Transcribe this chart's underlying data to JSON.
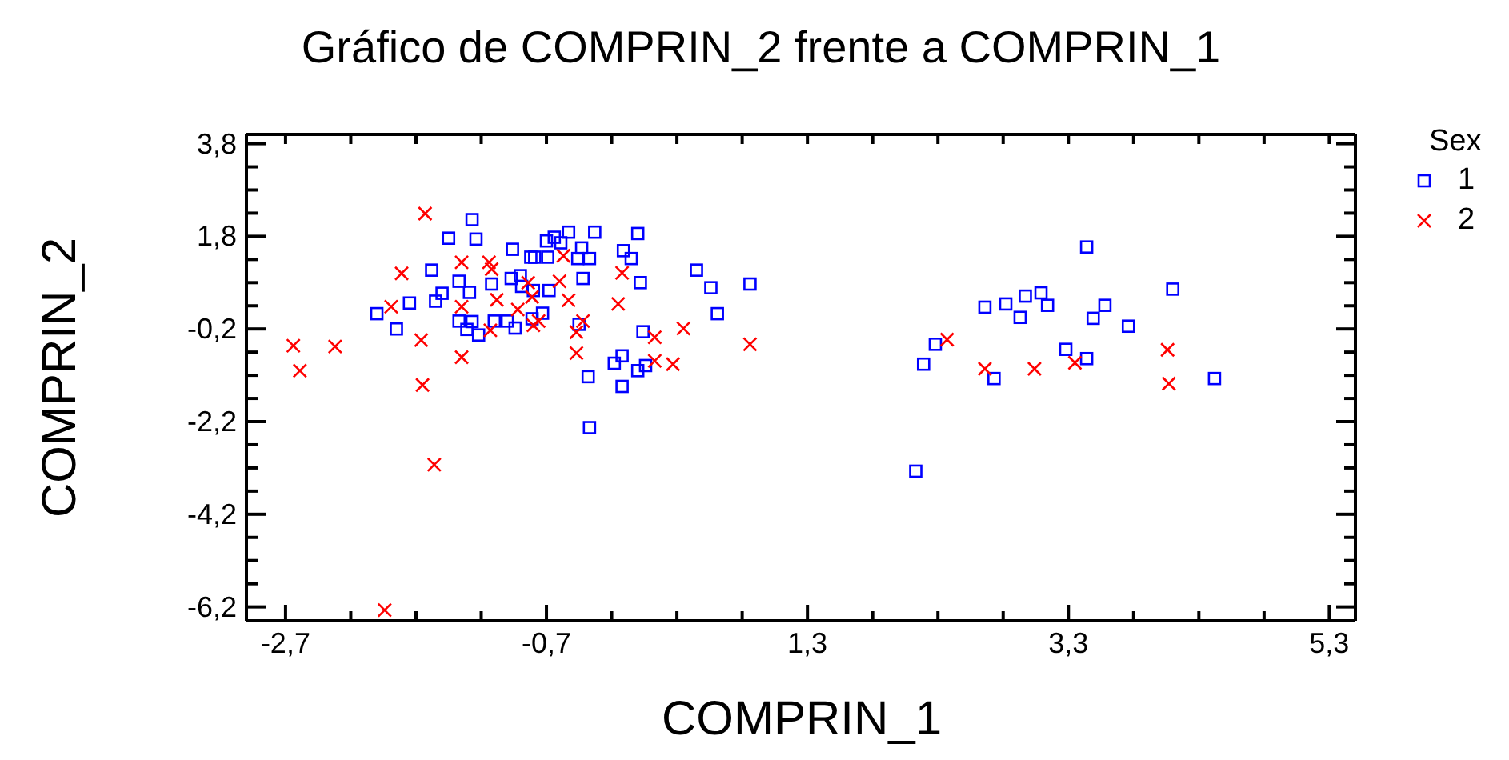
{
  "chart_data": {
    "type": "scatter",
    "title": "Gráfico de COMPRIN_2 frente a COMPRIN_1",
    "xlabel": "COMPRIN_1",
    "ylabel": "COMPRIN_2",
    "legend_title": "Sex",
    "legend": "top right",
    "grid": false,
    "xlim": [
      -3.0,
      5.5
    ],
    "ylim": [
      -6.5,
      4.0
    ],
    "xticks": [
      {
        "value": -2.7,
        "label": "-2,7"
      },
      {
        "value": -2.2,
        "label": null
      },
      {
        "value": -1.7,
        "label": null
      },
      {
        "value": -1.2,
        "label": null
      },
      {
        "value": -0.7,
        "label": "-0,7"
      },
      {
        "value": -0.2,
        "label": null
      },
      {
        "value": 0.3,
        "label": null
      },
      {
        "value": 0.8,
        "label": null
      },
      {
        "value": 1.3,
        "label": "1,3"
      },
      {
        "value": 1.8,
        "label": null
      },
      {
        "value": 2.3,
        "label": null
      },
      {
        "value": 2.8,
        "label": null
      },
      {
        "value": 3.3,
        "label": "3,3"
      },
      {
        "value": 3.8,
        "label": null
      },
      {
        "value": 4.3,
        "label": null
      },
      {
        "value": 4.8,
        "label": null
      },
      {
        "value": 5.3,
        "label": "5,3"
      }
    ],
    "yticks": [
      {
        "value": -6.2,
        "label": "-6,2"
      },
      {
        "value": -5.7,
        "label": null
      },
      {
        "value": -5.2,
        "label": null
      },
      {
        "value": -4.7,
        "label": null
      },
      {
        "value": -4.2,
        "label": "-4,2"
      },
      {
        "value": -3.7,
        "label": null
      },
      {
        "value": -3.2,
        "label": null
      },
      {
        "value": -2.7,
        "label": null
      },
      {
        "value": -2.2,
        "label": "-2,2"
      },
      {
        "value": -1.7,
        "label": null
      },
      {
        "value": -1.2,
        "label": null
      },
      {
        "value": -0.7,
        "label": null
      },
      {
        "value": -0.2,
        "label": "-0,2"
      },
      {
        "value": 0.3,
        "label": null
      },
      {
        "value": 0.8,
        "label": null
      },
      {
        "value": 1.3,
        "label": null
      },
      {
        "value": 1.8,
        "label": "1,8"
      },
      {
        "value": 2.3,
        "label": null
      },
      {
        "value": 2.8,
        "label": null
      },
      {
        "value": 3.3,
        "label": null
      },
      {
        "value": 3.8,
        "label": "3,8"
      }
    ],
    "series": [
      {
        "name": "1",
        "color": "#0000ff",
        "marker": "square",
        "x": [
          -1.27,
          -1.45,
          -1.24,
          -0.96,
          -0.82,
          -1.58,
          -1.37,
          -1.29,
          -1.12,
          -0.97,
          -0.9,
          -0.89,
          -1.5,
          -1.55,
          -1.75,
          -2.0,
          -1.85,
          -1.37,
          -1.27,
          -1.31,
          -1.22,
          -1.1,
          -1.0,
          -0.94,
          -0.81,
          -0.64,
          -0.53,
          -0.7,
          -0.59,
          -0.33,
          0.0,
          -0.43,
          -0.11,
          -0.05,
          -0.79,
          -0.69,
          -0.46,
          -0.37,
          -0.42,
          0.02,
          0.45,
          0.56,
          0.86,
          0.61,
          -0.68,
          -0.8,
          -0.73,
          -0.45,
          0.04,
          -0.12,
          -0.18,
          0.0,
          0.06,
          -0.38,
          -0.12,
          -0.37,
          3.44,
          4.1,
          2.66,
          2.82,
          2.97,
          3.09,
          3.14,
          2.93,
          3.58,
          3.49,
          3.76,
          2.28,
          2.19,
          2.73,
          3.28,
          3.44,
          4.42,
          2.13
        ],
        "values": [
          2.16,
          1.76,
          1.74,
          1.52,
          1.35,
          1.07,
          0.83,
          0.59,
          0.77,
          0.89,
          0.95,
          0.72,
          0.57,
          0.4,
          0.36,
          0.13,
          -0.2,
          -0.03,
          -0.04,
          -0.21,
          -0.33,
          -0.03,
          -0.03,
          -0.18,
          0.02,
          1.78,
          1.89,
          1.7,
          1.66,
          1.89,
          1.86,
          1.55,
          1.49,
          1.32,
          1.35,
          1.35,
          1.32,
          1.32,
          0.89,
          0.8,
          1.07,
          0.69,
          0.77,
          0.13,
          0.63,
          0.63,
          0.14,
          -0.1,
          -0.26,
          -0.78,
          -0.94,
          -1.1,
          -0.99,
          -1.23,
          -1.44,
          -2.33,
          1.57,
          0.66,
          0.27,
          0.34,
          0.51,
          0.58,
          0.31,
          0.05,
          0.31,
          0.03,
          -0.14,
          -0.53,
          -0.96,
          -1.27,
          -0.64,
          -0.84,
          -1.27,
          -3.27
        ]
      },
      {
        "name": "2",
        "color": "#ff0000",
        "marker": "cross",
        "x": [
          -1.63,
          -1.35,
          -1.81,
          -1.14,
          -1.12,
          -1.08,
          -1.89,
          -1.35,
          -0.92,
          -1.13,
          -2.64,
          -2.32,
          -1.66,
          -2.59,
          -1.35,
          -1.65,
          -0.84,
          -0.57,
          -0.6,
          -0.12,
          -0.81,
          -0.53,
          -0.15,
          -0.76,
          -0.8,
          -0.42,
          -0.47,
          -0.47,
          0.13,
          0.35,
          0.13,
          0.27,
          0.86,
          2.37,
          2.66,
          3.04,
          3.35,
          4.06,
          4.07,
          -1.56,
          -1.94
        ],
        "values": [
          2.29,
          1.24,
          1.0,
          1.24,
          1.09,
          0.43,
          0.28,
          0.28,
          0.22,
          -0.23,
          -0.56,
          -0.58,
          -0.44,
          -1.1,
          -0.81,
          -1.41,
          0.8,
          1.38,
          0.83,
          1.01,
          0.49,
          0.42,
          0.34,
          -0.03,
          -0.12,
          -0.03,
          -0.27,
          -0.72,
          -0.38,
          -0.19,
          -0.89,
          -0.96,
          -0.53,
          -0.43,
          -1.06,
          -1.06,
          -0.93,
          -0.65,
          -1.38,
          -3.13,
          -6.27
        ]
      }
    ]
  }
}
